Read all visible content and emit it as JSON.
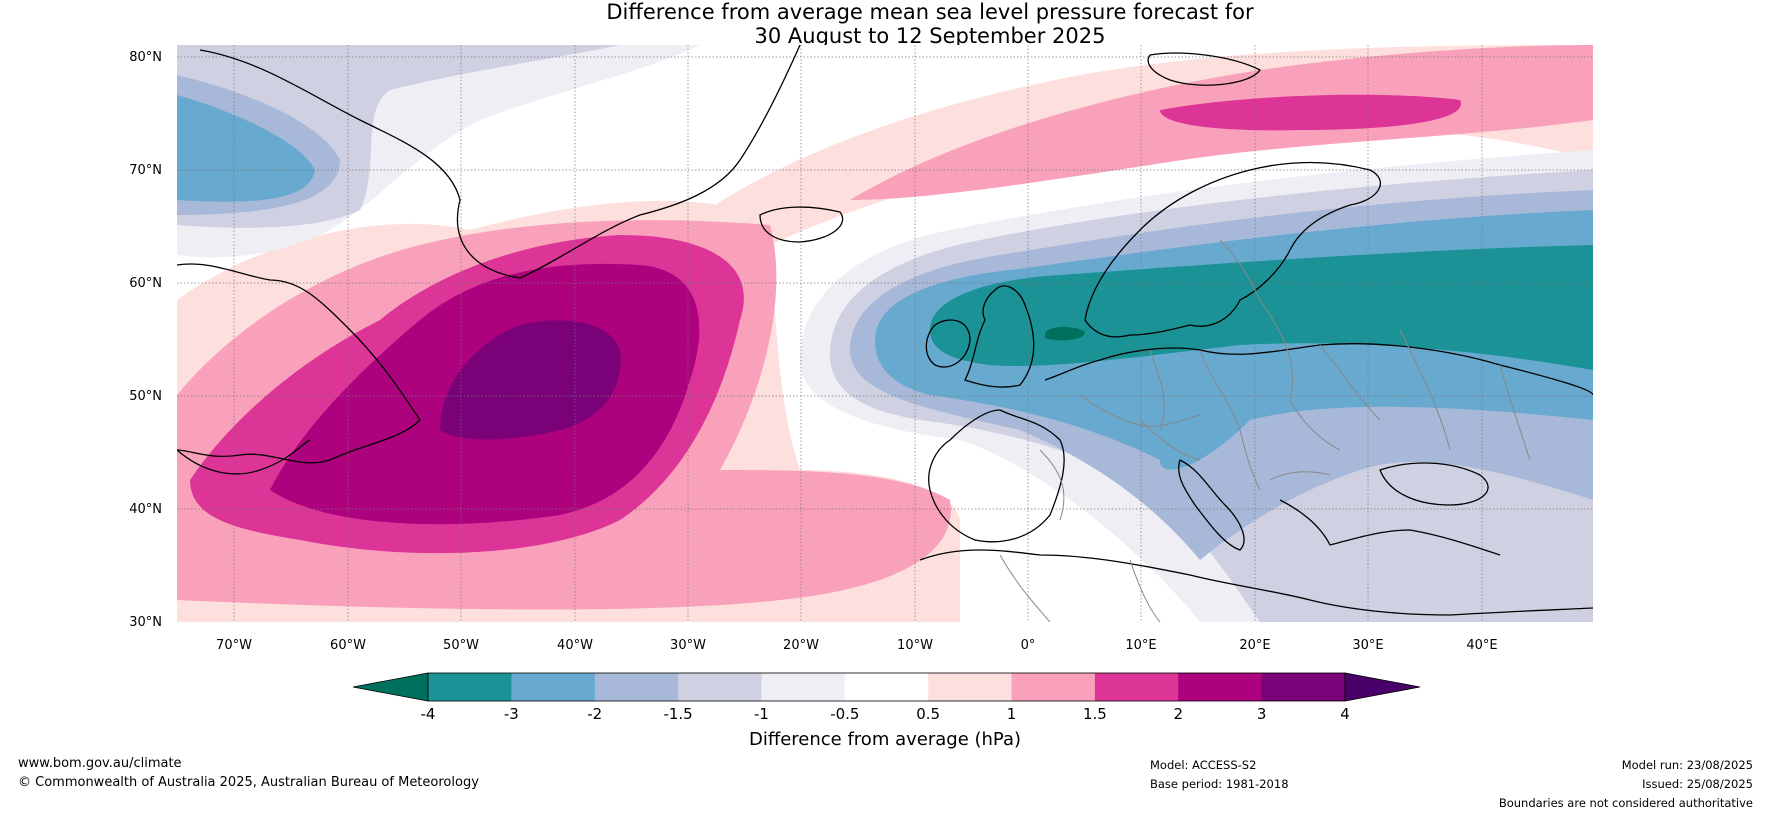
{
  "title": {
    "line1": "Difference from average mean sea level pressure forecast for",
    "line2": "30 August to 12 September 2025"
  },
  "axes": {
    "lat_ticks": [
      "80°N",
      "70°N",
      "60°N",
      "50°N",
      "40°N",
      "30°N"
    ],
    "lon_ticks": [
      "70°W",
      "60°W",
      "50°W",
      "40°W",
      "30°W",
      "20°W",
      "10°W",
      "0°",
      "10°E",
      "20°E",
      "30°E",
      "40°E"
    ]
  },
  "colorbar": {
    "label": "Difference from average (hPa)",
    "tick_labels": [
      "-4",
      "-3",
      "-2",
      "-1.5",
      "-1",
      "-0.5",
      "0.5",
      "1",
      "1.5",
      "2",
      "3",
      "4"
    ],
    "colors": [
      "#00705e",
      "#1a9296",
      "#67a9cf",
      "#a8b8d8",
      "#cfd1e3",
      "#f0eef5",
      "#ffffff",
      "#fde0dd",
      "#f9a1ba",
      "#dd3497",
      "#ae017e",
      "#7a0177",
      "#49006a"
    ]
  },
  "footer": {
    "website": "www.bom.gov.au/climate",
    "copyright": "© Commonwealth of Australia 2025, Australian Bureau of Meteorology",
    "model": "Model: ACCESS-S2",
    "base_period": "Base period: 1981-2018",
    "model_run": "Model run: 23/08/2025",
    "issued": "Issued: 25/08/2025",
    "disclaimer": "Boundaries are not considered authoritative"
  }
}
